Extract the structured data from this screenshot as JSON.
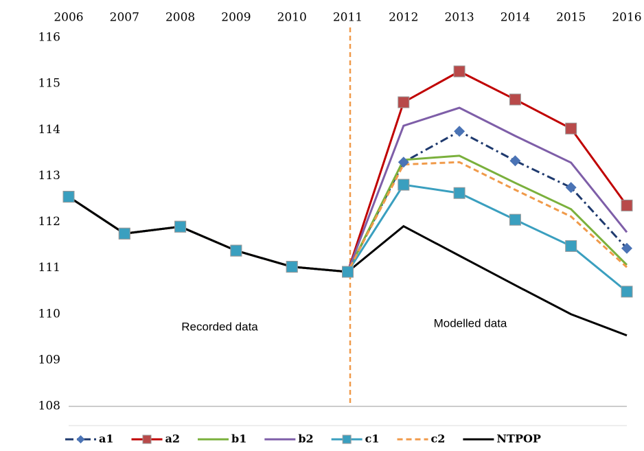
{
  "chart_data": {
    "type": "line",
    "categories": [
      "2006",
      "2007",
      "2008",
      "2009",
      "2010",
      "2011",
      "2012",
      "2013",
      "2014",
      "2015",
      "2016"
    ],
    "ylim": [
      108,
      116
    ],
    "yticks": [
      108,
      109,
      110,
      111,
      112,
      113,
      114,
      115,
      116
    ],
    "annotations": [
      "Recorded data",
      "Modelled data"
    ],
    "series": [
      {
        "name": "a1",
        "color": "#1f3a6e",
        "dash": "dashdot",
        "marker": "diamond",
        "marker_color": "#4a73b5",
        "values": [
          112.55,
          111.75,
          111.9,
          111.38,
          111.03,
          110.92,
          113.3,
          113.97,
          113.33,
          112.75,
          111.43
        ]
      },
      {
        "name": "a2",
        "color": "#c00000",
        "dash": "solid",
        "marker": "square",
        "marker_color": "#b84a4a",
        "values": [
          112.55,
          111.75,
          111.9,
          111.38,
          111.03,
          110.92,
          114.6,
          115.27,
          114.66,
          114.03,
          112.36
        ]
      },
      {
        "name": "b1",
        "color": "#7ab03c",
        "dash": "solid",
        "marker": "none",
        "values": [
          112.55,
          111.75,
          111.9,
          111.38,
          111.03,
          110.92,
          113.35,
          113.44,
          112.85,
          112.28,
          111.07
        ]
      },
      {
        "name": "b2",
        "color": "#7e5ea8",
        "dash": "solid",
        "marker": "none",
        "values": [
          112.55,
          111.75,
          111.9,
          111.38,
          111.03,
          110.92,
          114.09,
          114.48,
          113.87,
          113.29,
          111.78
        ]
      },
      {
        "name": "c1",
        "color": "#3a9fbf",
        "dash": "solid",
        "marker": "square",
        "marker_color": "#3a9fbf",
        "values": [
          112.55,
          111.75,
          111.9,
          111.38,
          111.03,
          110.92,
          112.81,
          112.63,
          112.05,
          111.48,
          110.49
        ]
      },
      {
        "name": "c2",
        "color": "#f09a4a",
        "dash": "dash",
        "marker": "none",
        "values": [
          112.55,
          111.75,
          111.9,
          111.38,
          111.03,
          110.92,
          113.25,
          113.3,
          112.7,
          112.12,
          111.02
        ]
      },
      {
        "name": "NTPOP",
        "color": "#000000",
        "dash": "solid",
        "marker": "none",
        "values": [
          112.55,
          111.75,
          111.9,
          111.38,
          111.03,
          110.92,
          111.91,
          111.27,
          110.63,
          110.0,
          109.54
        ]
      }
    ]
  }
}
